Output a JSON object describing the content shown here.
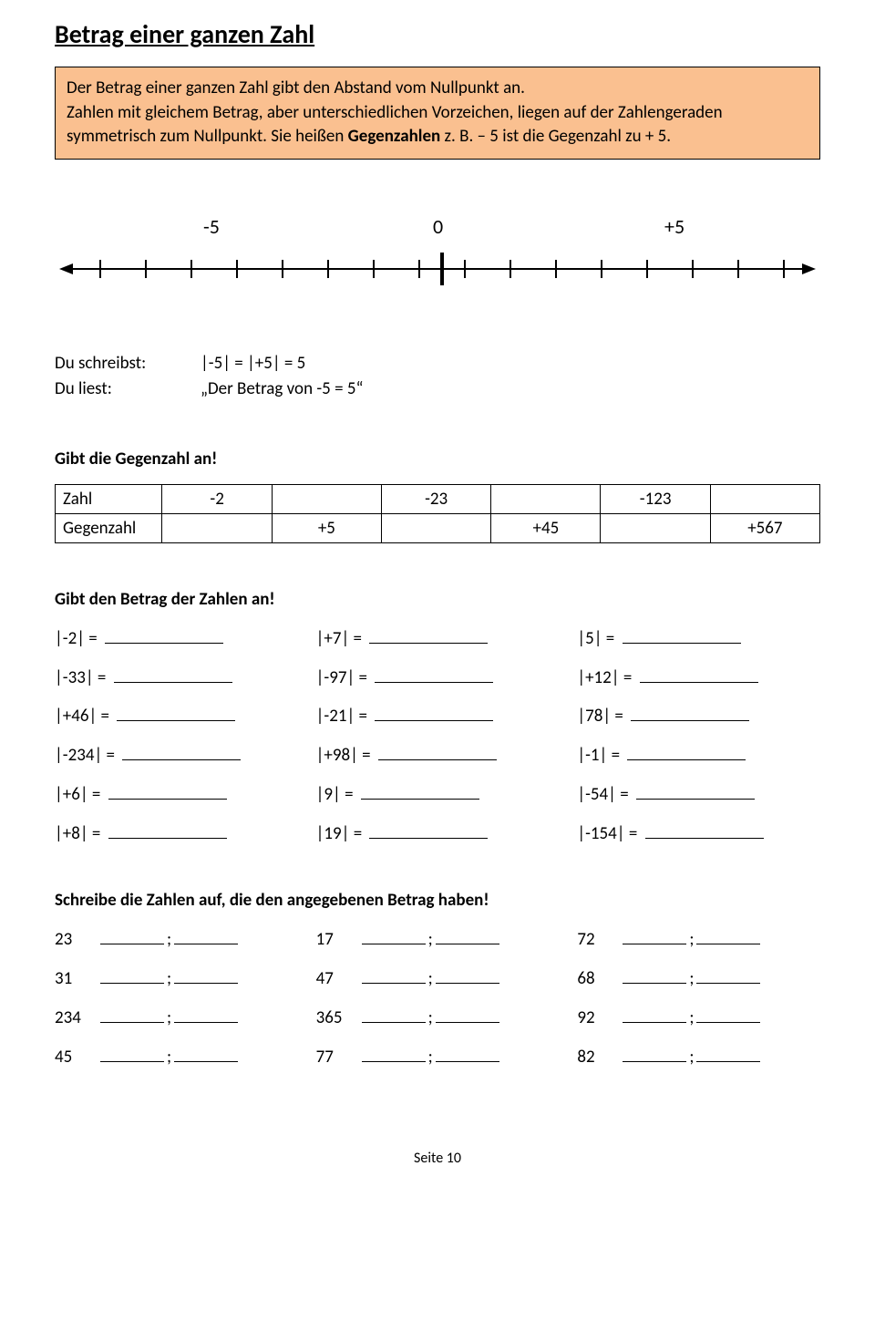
{
  "title": "Betrag einer ganzen Zahl",
  "intro": {
    "line1": "Der Betrag einer ganzen Zahl gibt den Abstand vom Nullpunkt an.",
    "line2a": "Zahlen mit gleichem Betrag, aber unterschiedlichen Vorzeichen, liegen auf der Zahlengeraden symmetrisch zum Nullpunkt. Sie heißen ",
    "gegen": "Gegenzahlen",
    "line2b": " z. B. – 5 ist die Gegenzahl zu + 5."
  },
  "numberline": {
    "minus5": "-5",
    "zero": "0",
    "plus5": "+5"
  },
  "defs": {
    "label1": "Du schreibst:",
    "val1": "|-5| = |+5| = 5",
    "label2": "Du liest:",
    "val2": "„Der Betrag von -5 = 5“"
  },
  "gegenzahl": {
    "heading": "Gibt die Gegenzahl an!",
    "row1_label": "Zahl",
    "row1": [
      "-2",
      "",
      "-23",
      "",
      "-123",
      ""
    ],
    "row2_label": "Gegenzahl",
    "row2": [
      "",
      "+5",
      "",
      "+45",
      "",
      "+567"
    ]
  },
  "betrag": {
    "heading": "Gibt den Betrag der Zahlen an!",
    "items": [
      "|-2| =",
      "|+7| =",
      "|5| =",
      "|-33| =",
      "|-97| =",
      "|+12| =",
      "|+46| =",
      "|-21| =",
      "|78| =",
      "|-234| =",
      "|+98| =",
      "|-1| =",
      "|+6| =",
      "|9| =",
      "|-54| =",
      "|+8| =",
      "|19| =",
      "|-154| ="
    ]
  },
  "schreibe": {
    "heading": "Schreibe die Zahlen auf, die den angegebenen Betrag haben!",
    "nums": [
      "23",
      "17",
      "72",
      "31",
      "47",
      "68",
      "234",
      "365",
      "92",
      "45",
      "77",
      "82"
    ]
  },
  "footer": "Seite 10"
}
